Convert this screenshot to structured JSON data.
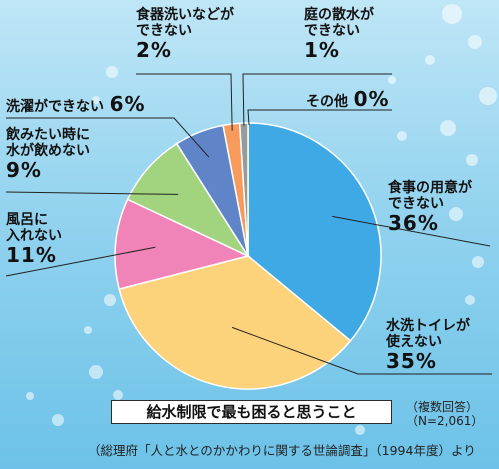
{
  "chart_data": {
    "type": "pie",
    "title": "給水制限で最も困ると思うこと",
    "note": "（複数回答）\n（N=2,061）",
    "source": "（総理府「人と水とのかかわりに関する世論調査」（1994年度）より",
    "slices": [
      {
        "label": "食事の用意が\nできない",
        "value": 36,
        "value_text": "36%",
        "color": "#3fa9e6"
      },
      {
        "label": "水洗トイレが\n使えない",
        "value": 35,
        "value_text": "35%",
        "color": "#fcd27a"
      },
      {
        "label": "風呂に\n入れない",
        "value": 11,
        "value_text": "11%",
        "color": "#f084b8"
      },
      {
        "label": "飲みたい時に\n水が飲めない",
        "value": 9,
        "value_text": "9%",
        "color": "#a2d37e"
      },
      {
        "label": "洗濯ができない",
        "value": 6,
        "value_text": "6%",
        "color": "#5f84c8"
      },
      {
        "label": "食器洗いなどが\nできない",
        "value": 2,
        "value_text": "2%",
        "color": "#f79a5c"
      },
      {
        "label": "庭の散水が\nできない",
        "value": 1,
        "value_text": "1%",
        "color": "#9a9a9a"
      },
      {
        "label": "その他",
        "value": 0,
        "value_text": "0%",
        "color": "#555555"
      }
    ]
  }
}
